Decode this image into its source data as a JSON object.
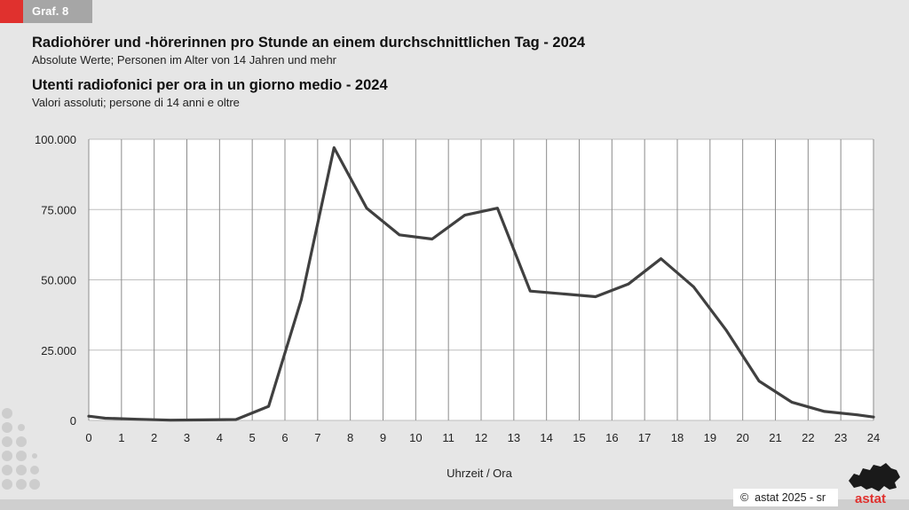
{
  "badge": "Graf. 8",
  "title_de": "Radiohörer und -hörerinnen pro Stunde an einem durchschnittlichen Tag - 2024",
  "subtitle_de": "Absolute Werte; Personen im Alter von 14 Jahren und mehr",
  "title_it": "Utenti radiofonici per ora in un giorno medio - 2024",
  "subtitle_it": "Valori assoluti; persone di 14 anni e oltre",
  "footer": {
    "copyright": "astat 2025 - sr",
    "logo_text": "astat"
  },
  "colors": {
    "line": "#404040",
    "accent": "#e0312e",
    "grid": "#bfbfbf"
  },
  "chart_data": {
    "type": "line",
    "xlabel": "Uhrzeit / Ora",
    "ylabel": "",
    "xlim": [
      0,
      24
    ],
    "ylim": [
      0,
      100000
    ],
    "x_ticks": [
      0,
      1,
      2,
      3,
      4,
      5,
      6,
      7,
      8,
      9,
      10,
      11,
      12,
      13,
      14,
      15,
      16,
      17,
      18,
      19,
      20,
      21,
      22,
      23,
      24
    ],
    "x_tick_labels": [
      "0",
      "1",
      "2",
      "3",
      "4",
      "5",
      "6",
      "7",
      "8",
      "9",
      "10",
      "11",
      "12",
      "13",
      "14",
      "15",
      "16",
      "17",
      "18",
      "19",
      "20",
      "21",
      "22",
      "23",
      "24"
    ],
    "y_ticks": [
      0,
      25000,
      50000,
      75000,
      100000
    ],
    "y_tick_labels": [
      "0",
      "25.000",
      "50.000",
      "75.000",
      "100.000"
    ],
    "grid": true,
    "legend": "none",
    "series": [
      {
        "x": [
          0,
          0.5,
          1.5,
          2.5,
          3.5,
          4.5,
          5.5,
          6.5,
          7.5,
          8.5,
          9.5,
          10.5,
          11.5,
          12.5,
          13.5,
          14.5,
          15.5,
          16.5,
          17.5,
          18.5,
          19.5,
          20.5,
          21.5,
          22.5,
          23.5,
          24
        ],
        "y": [
          1500,
          800,
          400,
          100,
          200,
          300,
          5000,
          43000,
          97000,
          75500,
          66000,
          64500,
          73000,
          75500,
          46000,
          45000,
          44000,
          48500,
          57500,
          47500,
          32000,
          14000,
          6500,
          3200,
          2000,
          1200
        ]
      }
    ]
  }
}
